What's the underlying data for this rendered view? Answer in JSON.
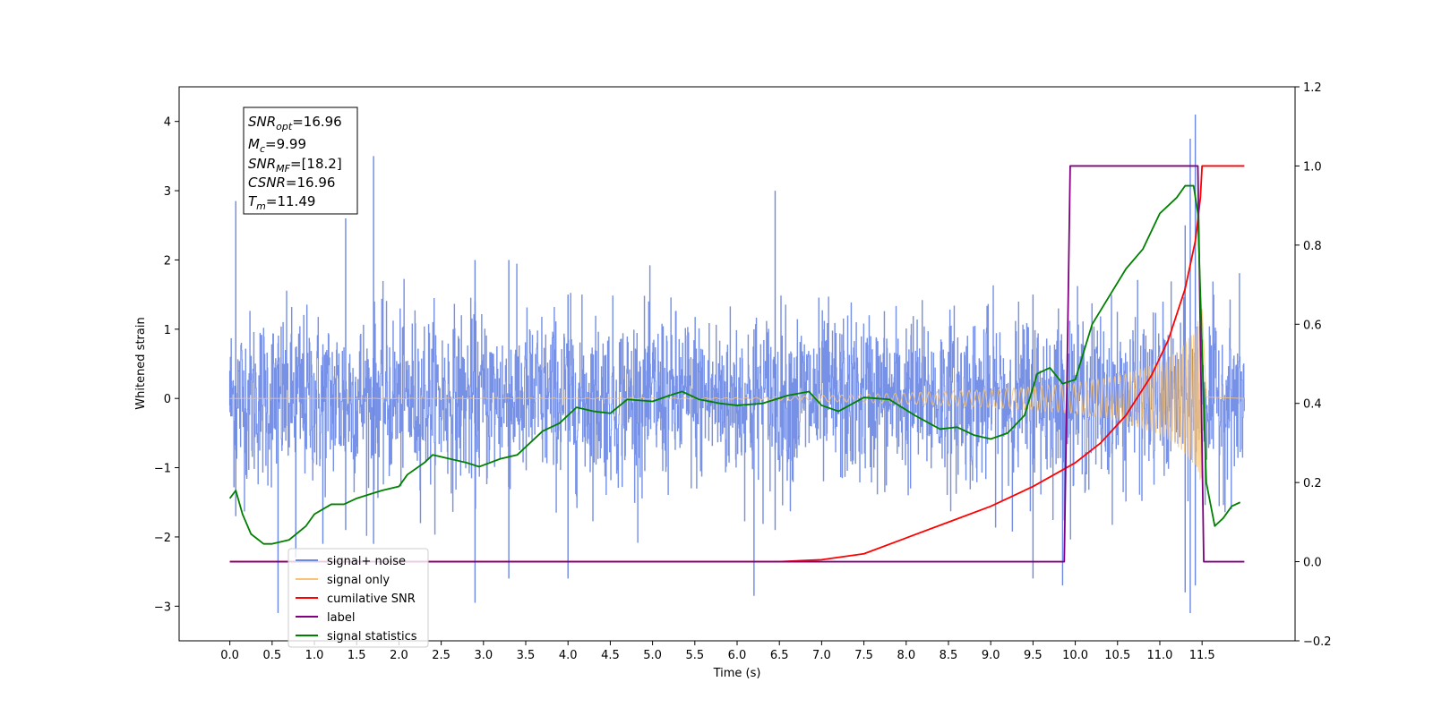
{
  "chart_data": {
    "type": "line",
    "xlabel": "Time (s)",
    "ylabel": "Whitened strain",
    "xlim": [
      -0.6,
      12.6
    ],
    "ylim": [
      -3.5,
      4.5
    ],
    "ylim_right": [
      -0.2,
      1.2
    ],
    "x_ticks": [
      "0.0",
      "0.5",
      "1.0",
      "1.5",
      "2.0",
      "2.5",
      "3.0",
      "3.5",
      "4.0",
      "4.5",
      "5.0",
      "5.5",
      "6.0",
      "6.5",
      "7.0",
      "7.5",
      "8.0",
      "8.5",
      "9.0",
      "9.5",
      "10.0",
      "10.5",
      "11.0",
      "11.5"
    ],
    "y_ticks": [
      "4",
      "3",
      "2",
      "1",
      "0",
      "−1",
      "−2",
      "−3"
    ],
    "y_ticks_values": [
      4,
      3,
      2,
      1,
      0,
      -1,
      -2,
      -3
    ],
    "y_ticks_right": [
      "1.2",
      "1.0",
      "0.8",
      "0.6",
      "0.4",
      "0.2",
      "0.0",
      "−0.2"
    ],
    "y_ticks_right_values": [
      1.2,
      1.0,
      0.8,
      0.6,
      0.4,
      0.2,
      0.0,
      -0.2
    ],
    "grid": false,
    "legend_position": "lower-left",
    "annotation": {
      "snr_opt": {
        "base": "SNR",
        "sub": "opt",
        "value": "=16.96"
      },
      "mc": {
        "base": "M",
        "sub": "c",
        "value": "=9.99"
      },
      "snr_mf": {
        "base": "SNR",
        "sub": "MF",
        "value": "=[18.2]"
      },
      "csnr": {
        "base": "CSNR",
        "value": "=16.96"
      },
      "tm": {
        "base": "T",
        "sub": "m",
        "value": "=11.49"
      }
    },
    "series": [
      {
        "name": "signal+ noise",
        "color": "#6b88e5",
        "axis": "left",
        "description_points": {
          "x": [
            0.0,
            0.07,
            0.57,
            0.78,
            1.1,
            1.37,
            1.7,
            2.9,
            3.3,
            4.0,
            6.2,
            6.45,
            9.5,
            9.85,
            11.3,
            11.36,
            11.42
          ],
          "peak": [
            0.4,
            2.85,
            0.5,
            0.3,
            0.6,
            2.6,
            3.5,
            2.0,
            2.0,
            1.5,
            1.0,
            3.0,
            1.5,
            0.5,
            2.5,
            3.75,
            4.1
          ],
          "trough": [
            -0.1,
            -1.7,
            -3.1,
            -2.3,
            -2.1,
            -1.9,
            -2.1,
            -2.95,
            -2.6,
            -2.6,
            -2.85,
            -1.9,
            -2.6,
            -2.7,
            -2.8,
            -3.1,
            -2.7
          ]
        }
      },
      {
        "name": "signal only",
        "color": "#f8c47a",
        "axis": "left",
        "envelope": {
          "x": [
            0.0,
            6.0,
            7.0,
            8.0,
            9.0,
            9.5,
            10.0,
            10.5,
            11.0,
            11.2,
            11.4,
            11.5,
            11.55,
            12.0
          ],
          "amp": [
            0.0,
            0.01,
            0.04,
            0.08,
            0.13,
            0.17,
            0.22,
            0.32,
            0.52,
            0.68,
            0.95,
            1.3,
            0.02,
            0.0
          ]
        }
      },
      {
        "name": "cumilative SNR",
        "color": "#ff0000",
        "axis": "right",
        "x": [
          0.0,
          6.5,
          7.0,
          7.5,
          8.0,
          8.5,
          9.0,
          9.5,
          10.0,
          10.3,
          10.6,
          10.9,
          11.1,
          11.3,
          11.42,
          11.48,
          11.5,
          12.0
        ],
        "y": [
          0.0,
          0.0,
          0.005,
          0.02,
          0.06,
          0.1,
          0.14,
          0.19,
          0.25,
          0.3,
          0.37,
          0.47,
          0.56,
          0.69,
          0.81,
          0.92,
          1.0,
          1.0
        ]
      },
      {
        "name": "label",
        "color": "#800080",
        "axis": "right",
        "x": [
          0.0,
          9.87,
          9.94,
          11.45,
          11.52,
          12.0
        ],
        "y": [
          0.0,
          0.0,
          1.0,
          1.0,
          0.0,
          0.0
        ]
      },
      {
        "name": "signal statistics",
        "color": "#008000",
        "axis": "right",
        "x": [
          0.0,
          0.07,
          0.15,
          0.25,
          0.4,
          0.5,
          0.7,
          0.9,
          1.0,
          1.2,
          1.35,
          1.5,
          1.65,
          1.8,
          2.0,
          2.1,
          2.3,
          2.4,
          2.6,
          2.8,
          2.95,
          3.2,
          3.4,
          3.55,
          3.7,
          3.9,
          4.1,
          4.3,
          4.5,
          4.7,
          5.0,
          5.2,
          5.35,
          5.55,
          5.8,
          6.0,
          6.3,
          6.6,
          6.85,
          7.0,
          7.2,
          7.5,
          7.8,
          8.1,
          8.4,
          8.6,
          8.8,
          9.0,
          9.2,
          9.4,
          9.55,
          9.7,
          9.85,
          10.0,
          10.2,
          10.4,
          10.6,
          10.8,
          11.0,
          11.2,
          11.3,
          11.4,
          11.45,
          11.55,
          11.65,
          11.75,
          11.85,
          11.95
        ],
        "y": [
          0.16,
          0.18,
          0.12,
          0.07,
          0.045,
          0.045,
          0.055,
          0.09,
          0.12,
          0.145,
          0.145,
          0.16,
          0.17,
          0.18,
          0.19,
          0.22,
          0.25,
          0.27,
          0.26,
          0.25,
          0.24,
          0.26,
          0.27,
          0.3,
          0.33,
          0.35,
          0.39,
          0.38,
          0.375,
          0.41,
          0.405,
          0.42,
          0.43,
          0.41,
          0.4,
          0.395,
          0.4,
          0.42,
          0.43,
          0.395,
          0.38,
          0.415,
          0.41,
          0.37,
          0.335,
          0.34,
          0.32,
          0.31,
          0.325,
          0.37,
          0.475,
          0.49,
          0.45,
          0.46,
          0.6,
          0.67,
          0.74,
          0.79,
          0.88,
          0.92,
          0.95,
          0.95,
          0.88,
          0.2,
          0.09,
          0.11,
          0.14,
          0.15
        ]
      }
    ]
  }
}
